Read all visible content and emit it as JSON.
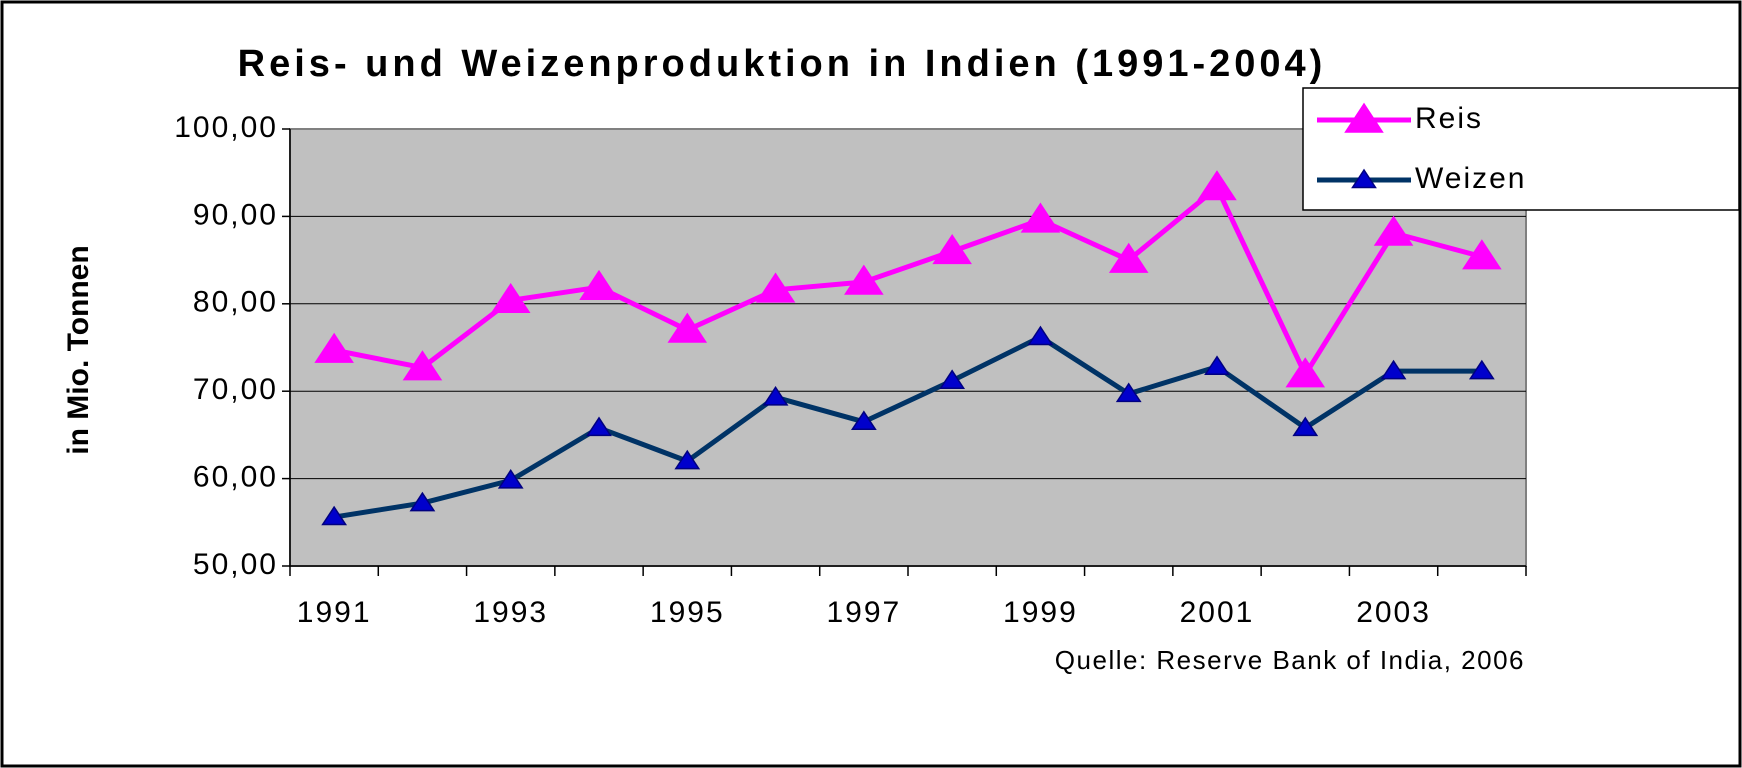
{
  "chart_data": {
    "type": "line",
    "title": "Reis- und Weizenproduktion in Indien (1991-2004)",
    "ylabel": "in Mio. Tonnen",
    "source": "Quelle: Reserve Bank of India, 2006",
    "categories": [
      "1991",
      null,
      "1993",
      null,
      "1995",
      null,
      "1997",
      null,
      "1999",
      null,
      "2001",
      null,
      "2003",
      null
    ],
    "series": [
      {
        "name": "Reis",
        "color": "#ff00ff",
        "values": [
          74.7,
          72.7,
          80.4,
          81.9,
          77.0,
          81.6,
          82.5,
          86.0,
          89.6,
          85.0,
          93.3,
          71.9,
          88.1,
          85.4
        ]
      },
      {
        "name": "Weizen",
        "color": "#003366",
        "values": [
          55.6,
          57.2,
          59.8,
          65.8,
          62.0,
          69.3,
          66.5,
          71.2,
          76.2,
          69.7,
          72.8,
          65.8,
          72.3,
          72.3
        ]
      }
    ],
    "ylim": [
      50,
      100
    ],
    "yticks": [
      {
        "value": 50,
        "label": "50,00"
      },
      {
        "value": 60,
        "label": "60,00"
      },
      {
        "value": 70,
        "label": "70,00"
      },
      {
        "value": 80,
        "label": "80,00"
      },
      {
        "value": 90,
        "label": "90,00"
      },
      {
        "value": 100,
        "label": "100,00"
      }
    ],
    "grid": true,
    "legend": "top-right"
  }
}
